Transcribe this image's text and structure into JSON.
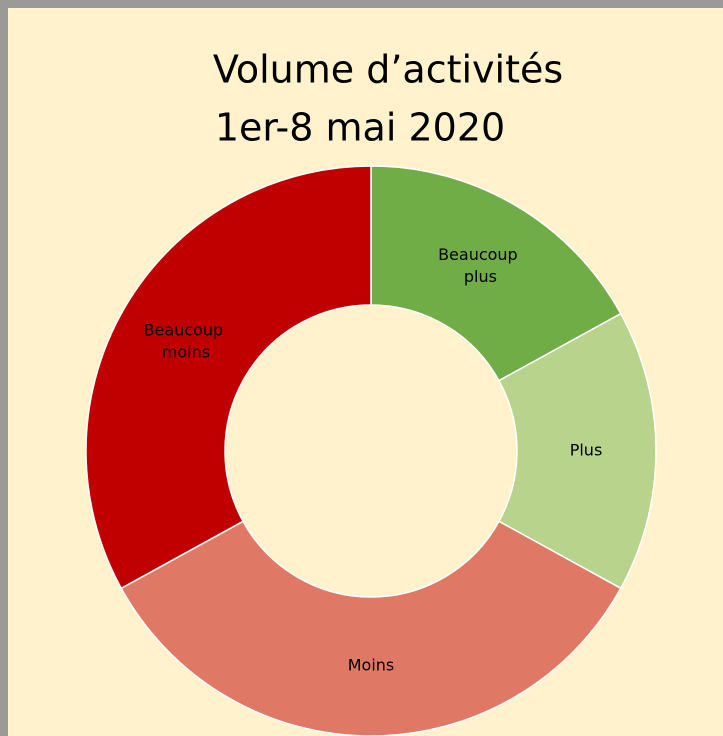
{
  "chart_data": {
    "type": "donut",
    "title": "Volume d’activités",
    "subtitle": "1er-8 mai 2020",
    "categories": [
      "Beaucoup plus",
      "Plus",
      "Moins",
      "Beaucoup moins"
    ],
    "values": [
      17,
      16,
      34,
      33
    ],
    "colors": [
      "#70ad47",
      "#b8d38c",
      "#e07866",
      "#c00000"
    ]
  }
}
